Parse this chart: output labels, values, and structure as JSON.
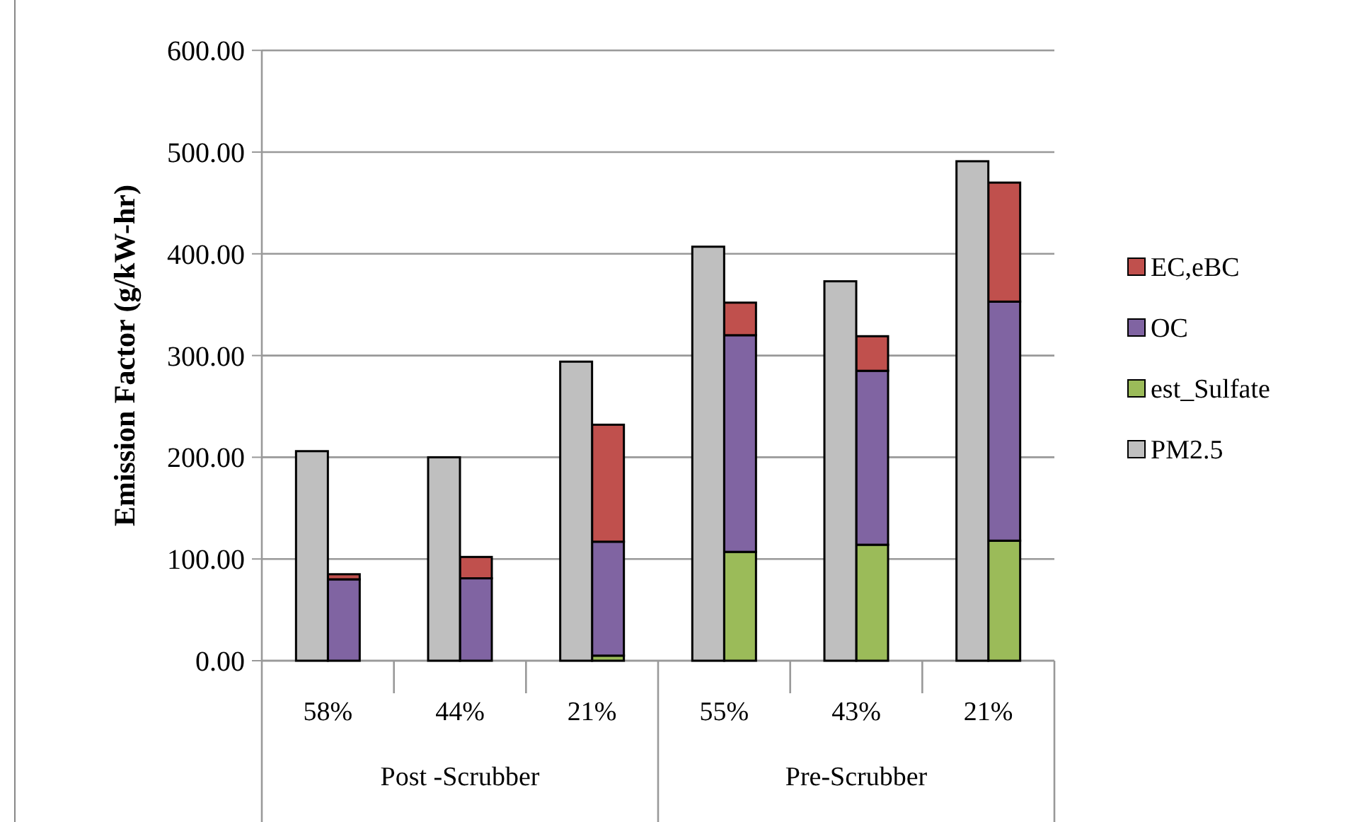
{
  "chart_data": [
    {
      "type": "bar",
      "ylabel": "Emission Factor (g/kW-hr)",
      "categories": [
        "58%",
        "44%",
        "21%",
        "55%",
        "43%",
        "21%"
      ],
      "annotations": [
        "Post -Scrubber",
        "Pre-Scrubber"
      ],
      "stacked": true,
      "series": [
        {
          "name": "est_Sulfate",
          "color": "#9bbb59",
          "values": [
            null,
            null,
            5,
            107,
            114,
            118
          ]
        },
        {
          "name": "OC",
          "color": "#8064a2",
          "values": [
            80,
            81,
            112,
            213,
            171,
            235
          ]
        },
        {
          "name": "EC,eBC",
          "color": "#c0504d",
          "values": [
            5,
            21,
            115,
            32,
            34,
            117
          ]
        }
      ],
      "ylim": [
        0,
        600
      ],
      "yticks": [
        {
          "value": 0,
          "label": "0.00"
        },
        {
          "value": 100,
          "label": "100.00"
        },
        {
          "value": 200,
          "label": "200.00"
        },
        {
          "value": 300,
          "label": "300.00"
        },
        {
          "value": 400,
          "label": "400.00"
        },
        {
          "value": 500,
          "label": "500.00"
        },
        {
          "value": 600,
          "label": "600.00"
        }
      ],
      "grid": "y",
      "legend": "right"
    },
    {
      "type": "bar",
      "categories": [
        null,
        null,
        null,
        null,
        null,
        null
      ],
      "tick_labels": false,
      "series": [
        {
          "name": "PM2.5",
          "color": "#bfbfbf",
          "values": [
            206,
            200,
            294,
            407,
            373,
            491
          ]
        }
      ],
      "ylim": [
        0,
        600
      ],
      "legend": "right"
    }
  ]
}
